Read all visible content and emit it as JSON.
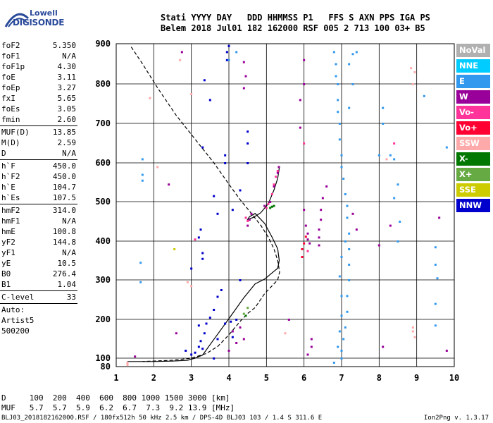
{
  "logo": {
    "line1": "Lowell",
    "line2": "DIGISONDE"
  },
  "header": {
    "row1": "Stati YYYY DAY   DDD HHMMSS P1   FFS S AXN PPS IGA PS",
    "row2": "Belem 2018 Jul01 182 162000 RSF 005 2 713 100 03+ B5"
  },
  "params": [
    {
      "name": "foF2",
      "value": "5.350"
    },
    {
      "name": "foF1",
      "value": "N/A"
    },
    {
      "name": "foF1p",
      "value": "4.30"
    },
    {
      "name": "foE",
      "value": "3.11"
    },
    {
      "name": "foEp",
      "value": "3.27"
    },
    {
      "name": "fxI",
      "value": "5.65"
    },
    {
      "name": "foEs",
      "value": "3.05"
    },
    {
      "name": "fmin",
      "value": "2.60"
    },
    {
      "sep": true
    },
    {
      "name": "MUF(D)",
      "value": "13.85"
    },
    {
      "name": "M(D)",
      "value": "2.59"
    },
    {
      "name": "D",
      "value": "N/A"
    },
    {
      "sep": true
    },
    {
      "name": "h`F",
      "value": "450.0"
    },
    {
      "name": "h`F2",
      "value": "450.0"
    },
    {
      "name": "h`E",
      "value": "104.7"
    },
    {
      "name": "h`Es",
      "value": "107.5"
    },
    {
      "sep": true
    },
    {
      "name": "hmF2",
      "value": "314.0"
    },
    {
      "name": "hmF1",
      "value": "N/A"
    },
    {
      "name": "hmE",
      "value": "100.8"
    },
    {
      "name": "yF2",
      "value": "144.8"
    },
    {
      "name": "yF1",
      "value": "N/A"
    },
    {
      "name": "yE",
      "value": "10.5"
    },
    {
      "name": "B0",
      "value": "276.4"
    },
    {
      "name": "B1",
      "value": "1.04"
    },
    {
      "sep": true
    },
    {
      "name": "C-level",
      "value": "33"
    },
    {
      "sep": true
    },
    {
      "name": "Auto:",
      "value": ""
    },
    {
      "name": "Artist5",
      "value": ""
    },
    {
      "name": "500200",
      "value": ""
    }
  ],
  "legend": [
    {
      "label": "NoVal",
      "color": "#b0b0b0"
    },
    {
      "label": "NNE",
      "color": "#00ccff"
    },
    {
      "label": "E",
      "color": "#3399ee"
    },
    {
      "label": "W",
      "color": "#990099"
    },
    {
      "label": "Vo-",
      "color": "#ff3399"
    },
    {
      "label": "Vo+",
      "color": "#ff0033"
    },
    {
      "label": "SSW",
      "color": "#ffaaaa"
    },
    {
      "label": "X-",
      "color": "#007700"
    },
    {
      "label": "X+",
      "color": "#66aa44"
    },
    {
      "label": "SSE",
      "color": "#cccc00"
    },
    {
      "label": "NNW",
      "color": "#0000cc"
    }
  ],
  "bottom": {
    "row1": "D     100  200  400  600  800 1000 1500 3000 [km]",
    "row2": "MUF   5.7  5.7  5.9  6.2  6.7  7.3  9.2 13.9 [MHz]"
  },
  "footer": {
    "left": "BLJ03_2018182162000.RSF / 180fx512h 50 kHz 2.5 km / DPS-4D BLJ03 103 / 1.4 S 311.6 E",
    "right": "Ion2Png v. 1.3.17"
  },
  "chart_data": {
    "type": "scatter",
    "xlim": [
      1,
      10
    ],
    "ylim": [
      80,
      900
    ],
    "x_ticks": [
      1,
      2,
      3,
      4,
      5,
      6,
      7,
      8,
      9,
      10
    ],
    "y_ticks": [
      80,
      100,
      200,
      300,
      400,
      500,
      600,
      700,
      800,
      900
    ],
    "grid": true,
    "series": [
      {
        "name": "NNW",
        "color": "#0000cc",
        "points": [
          [
            2.85,
            120
          ],
          [
            3.0,
            110
          ],
          [
            3.1,
            115
          ],
          [
            3.2,
            130
          ],
          [
            3.25,
            145
          ],
          [
            3.3,
            125
          ],
          [
            3.35,
            165
          ],
          [
            3.4,
            190
          ],
          [
            3.5,
            205
          ],
          [
            3.6,
            225
          ],
          [
            3.7,
            258
          ],
          [
            3.2,
            185
          ],
          [
            3.0,
            330
          ],
          [
            3.3,
            355
          ],
          [
            3.3,
            370
          ],
          [
            3.2,
            410
          ],
          [
            3.25,
            430
          ],
          [
            3.3,
            640
          ],
          [
            3.35,
            810
          ],
          [
            3.5,
            760
          ],
          [
            3.6,
            515
          ],
          [
            3.9,
            600
          ],
          [
            3.9,
            620
          ],
          [
            3.95,
            860
          ],
          [
            3.95,
            880
          ],
          [
            4.0,
            895
          ],
          [
            4.3,
            530
          ],
          [
            4.5,
            600
          ],
          [
            4.5,
            650
          ],
          [
            4.5,
            680
          ],
          [
            4.1,
            480
          ],
          [
            3.7,
            470
          ],
          [
            3.6,
            100
          ],
          [
            3.7,
            150
          ],
          [
            3.9,
            190
          ],
          [
            4.05,
            195
          ],
          [
            4.1,
            155
          ],
          [
            4.2,
            200
          ],
          [
            4.3,
            300
          ],
          [
            3.8,
            275
          ]
        ]
      },
      {
        "name": "W",
        "color": "#990099",
        "points": [
          [
            1.5,
            105
          ],
          [
            2.4,
            545
          ],
          [
            2.6,
            165
          ],
          [
            2.75,
            880
          ],
          [
            4.0,
            120
          ],
          [
            4.2,
            140
          ],
          [
            4.1,
            170
          ],
          [
            4.3,
            180
          ],
          [
            4.4,
            150
          ],
          [
            4.5,
            440
          ],
          [
            4.55,
            455
          ],
          [
            4.6,
            470
          ],
          [
            4.95,
            490
          ],
          [
            5.1,
            500
          ],
          [
            5.2,
            540
          ],
          [
            5.3,
            575
          ],
          [
            5.33,
            590
          ],
          [
            5.6,
            200
          ],
          [
            6.0,
            480
          ],
          [
            6.05,
            440
          ],
          [
            6.1,
            420
          ],
          [
            6.1,
            405
          ],
          [
            6.15,
            395
          ],
          [
            6.4,
            390
          ],
          [
            6.4,
            410
          ],
          [
            6.4,
            430
          ],
          [
            6.45,
            455
          ],
          [
            6.45,
            480
          ],
          [
            6.5,
            510
          ],
          [
            6.6,
            540
          ],
          [
            6.2,
            150
          ],
          [
            6.2,
            130
          ],
          [
            6.1,
            110
          ],
          [
            6.0,
            860
          ],
          [
            6.0,
            800
          ],
          [
            5.9,
            690
          ],
          [
            5.9,
            760
          ],
          [
            4.45,
            820
          ],
          [
            4.4,
            790
          ],
          [
            4.4,
            855
          ],
          [
            8.1,
            130
          ],
          [
            8.3,
            440
          ],
          [
            7.3,
            470
          ],
          [
            7.4,
            430
          ],
          [
            9.8,
            120
          ],
          [
            8.0,
            390
          ],
          [
            9.6,
            460
          ]
        ]
      },
      {
        "name": "E",
        "color": "#3399ee",
        "points": [
          [
            6.8,
            880
          ],
          [
            6.85,
            850
          ],
          [
            6.85,
            820
          ],
          [
            6.9,
            800
          ],
          [
            6.9,
            760
          ],
          [
            6.9,
            730
          ],
          [
            6.95,
            700
          ],
          [
            6.95,
            660
          ],
          [
            7.0,
            620
          ],
          [
            7.0,
            590
          ],
          [
            7.05,
            560
          ],
          [
            7.1,
            520
          ],
          [
            7.15,
            490
          ],
          [
            7.15,
            460
          ],
          [
            7.2,
            420
          ],
          [
            7.2,
            380
          ],
          [
            7.2,
            340
          ],
          [
            7.2,
            300
          ],
          [
            7.15,
            260
          ],
          [
            7.15,
            220
          ],
          [
            7.1,
            180
          ],
          [
            7.05,
            150
          ],
          [
            7.0,
            120
          ],
          [
            7.0,
            100
          ],
          [
            6.8,
            90
          ],
          [
            6.9,
            130
          ],
          [
            6.95,
            170
          ],
          [
            7.0,
            210
          ],
          [
            7.0,
            260
          ],
          [
            6.95,
            310
          ],
          [
            7.0,
            360
          ],
          [
            7.1,
            400
          ],
          [
            7.2,
            850
          ],
          [
            7.3,
            875
          ],
          [
            7.4,
            880
          ],
          [
            7.3,
            800
          ],
          [
            7.2,
            740
          ],
          [
            8.1,
            740
          ],
          [
            8.1,
            700
          ],
          [
            8.3,
            620
          ],
          [
            8.4,
            610
          ],
          [
            8.5,
            545
          ],
          [
            8.4,
            510
          ],
          [
            8.55,
            450
          ],
          [
            8.5,
            400
          ],
          [
            9.5,
            385
          ],
          [
            9.5,
            340
          ],
          [
            9.55,
            305
          ],
          [
            9.5,
            240
          ],
          [
            9.5,
            185
          ],
          [
            9.8,
            640
          ],
          [
            9.2,
            770
          ],
          [
            8.0,
            620
          ],
          [
            1.7,
            610
          ],
          [
            1.7,
            570
          ],
          [
            1.7,
            555
          ],
          [
            1.65,
            345
          ],
          [
            1.65,
            295
          ],
          [
            4.0,
            860
          ],
          [
            4.2,
            880
          ]
        ]
      },
      {
        "name": "Vo-",
        "color": "#ff3399",
        "points": [
          [
            4.45,
            460
          ],
          [
            4.5,
            452
          ],
          [
            5.0,
            485
          ],
          [
            5.05,
            495
          ],
          [
            5.15,
            520
          ],
          [
            5.2,
            545
          ],
          [
            5.25,
            565
          ],
          [
            5.3,
            580
          ],
          [
            6.0,
            650
          ],
          [
            6.1,
            375
          ],
          [
            3.1,
            405
          ],
          [
            8.4,
            650
          ]
        ]
      },
      {
        "name": "Vo+",
        "color": "#ff0033",
        "points": [
          [
            5.95,
            380
          ],
          [
            6.0,
            395
          ],
          [
            6.05,
            412
          ],
          [
            5.95,
            360
          ]
        ]
      },
      {
        "name": "SSW",
        "color": "#ffaaaa",
        "points": [
          [
            1.3,
            85
          ],
          [
            1.3,
            90
          ],
          [
            1.9,
            765
          ],
          [
            2.1,
            590
          ],
          [
            2.7,
            860
          ],
          [
            2.9,
            295
          ],
          [
            3.0,
            285
          ],
          [
            5.5,
            165
          ],
          [
            8.9,
            800
          ],
          [
            8.85,
            840
          ],
          [
            8.9,
            180
          ],
          [
            8.9,
            170
          ],
          [
            8.95,
            155
          ],
          [
            8.2,
            610
          ],
          [
            8.95,
            830
          ],
          [
            3.0,
            775
          ]
        ]
      },
      {
        "name": "X-",
        "color": "#007700",
        "points": [
          [
            5.1,
            485
          ],
          [
            5.15,
            488
          ],
          [
            5.2,
            490
          ],
          [
            4.45,
            210
          ]
        ]
      },
      {
        "name": "X+",
        "color": "#66aa44",
        "points": [
          [
            4.5,
            230
          ],
          [
            4.4,
            215
          ]
        ]
      },
      {
        "name": "SSE",
        "color": "#cccc00",
        "points": [
          [
            2.55,
            380
          ]
        ]
      }
    ],
    "curves": [
      {
        "name": "virtual-height-trace",
        "style": "solid",
        "points": [
          [
            1.3,
            92
          ],
          [
            2.0,
            92
          ],
          [
            2.5,
            93
          ],
          [
            2.9,
            95
          ],
          [
            3.1,
            100
          ],
          [
            3.3,
            108
          ],
          [
            3.5,
            135
          ],
          [
            3.8,
            175
          ],
          [
            4.1,
            215
          ],
          [
            4.4,
            255
          ],
          [
            4.7,
            290
          ],
          [
            4.95,
            302
          ],
          [
            5.15,
            318
          ],
          [
            5.3,
            330
          ],
          [
            5.34,
            350
          ],
          [
            5.3,
            380
          ],
          [
            5.15,
            410
          ],
          [
            4.95,
            445
          ],
          [
            4.7,
            470
          ],
          [
            4.55,
            462
          ],
          [
            4.5,
            455
          ],
          [
            4.65,
            460
          ],
          [
            4.85,
            472
          ],
          [
            5.05,
            495
          ],
          [
            5.2,
            530
          ],
          [
            5.3,
            560
          ],
          [
            5.35,
            592
          ]
        ]
      },
      {
        "name": "profile",
        "style": "dashed",
        "points": [
          [
            1.4,
            892
          ],
          [
            1.7,
            850
          ],
          [
            2.1,
            790
          ],
          [
            2.6,
            720
          ],
          [
            3.1,
            660
          ],
          [
            3.6,
            600
          ],
          [
            4.0,
            545
          ],
          [
            4.3,
            505
          ],
          [
            4.6,
            470
          ],
          [
            4.85,
            440
          ],
          [
            5.05,
            410
          ],
          [
            5.2,
            380
          ],
          [
            5.3,
            350
          ],
          [
            5.35,
            320
          ],
          [
            5.3,
            300
          ],
          [
            5.15,
            285
          ],
          [
            4.95,
            265
          ],
          [
            4.7,
            230
          ],
          [
            4.5,
            215
          ],
          [
            4.3,
            195
          ],
          [
            4.0,
            160
          ],
          [
            3.7,
            130
          ],
          [
            3.4,
            112
          ],
          [
            3.0,
            100
          ],
          [
            2.5,
            95
          ],
          [
            1.7,
            92
          ]
        ]
      }
    ]
  }
}
